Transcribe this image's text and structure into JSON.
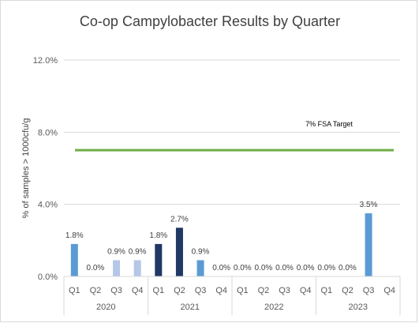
{
  "chart_data": {
    "type": "bar",
    "title": "Co-op Campylobacter Results by Quarter",
    "ylabel": "% of samples > 1000cfu/g",
    "xlabel": "",
    "ylim": [
      0,
      12
    ],
    "yticks": [
      {
        "value": 0,
        "label": "0.0%"
      },
      {
        "value": 4,
        "label": "4.0%"
      },
      {
        "value": 8,
        "label": "8.0%"
      },
      {
        "value": 12,
        "label": "12.0%"
      }
    ],
    "grid": true,
    "legend": "none",
    "years": [
      "2020",
      "2021",
      "2022",
      "2023"
    ],
    "categories": [
      {
        "year": "2020",
        "quarter": "Q1",
        "value": 1.8,
        "label": "1.8%",
        "color": "#5b9bd5"
      },
      {
        "year": "2020",
        "quarter": "Q2",
        "value": 0.0,
        "label": "0.0%",
        "color": "#5b9bd5"
      },
      {
        "year": "2020",
        "quarter": "Q3",
        "value": 0.9,
        "label": "0.9%",
        "color": "#b4c7e7"
      },
      {
        "year": "2020",
        "quarter": "Q4",
        "value": 0.9,
        "label": "0.9%",
        "color": "#b4c7e7"
      },
      {
        "year": "2021",
        "quarter": "Q1",
        "value": 1.8,
        "label": "1.8%",
        "color": "#1f3864"
      },
      {
        "year": "2021",
        "quarter": "Q2",
        "value": 2.7,
        "label": "2.7%",
        "color": "#1f3864"
      },
      {
        "year": "2021",
        "quarter": "Q3",
        "value": 0.9,
        "label": "0.9%",
        "color": "#5b9bd5"
      },
      {
        "year": "2021",
        "quarter": "Q4",
        "value": 0.0,
        "label": "0.0%",
        "color": "#5b9bd5"
      },
      {
        "year": "2022",
        "quarter": "Q1",
        "value": 0.0,
        "label": "0.0%",
        "color": "#5b9bd5"
      },
      {
        "year": "2022",
        "quarter": "Q2",
        "value": 0.0,
        "label": "0.0%",
        "color": "#5b9bd5"
      },
      {
        "year": "2022",
        "quarter": "Q3",
        "value": 0.0,
        "label": "0.0%",
        "color": "#5b9bd5"
      },
      {
        "year": "2022",
        "quarter": "Q4",
        "value": 0.0,
        "label": "0.0%",
        "color": "#5b9bd5"
      },
      {
        "year": "2023",
        "quarter": "Q1",
        "value": 0.0,
        "label": "0.0%",
        "color": "#5b9bd5"
      },
      {
        "year": "2023",
        "quarter": "Q2",
        "value": 0.0,
        "label": "0.0%",
        "color": "#5b9bd5"
      },
      {
        "year": "2023",
        "quarter": "Q3",
        "value": 3.5,
        "label": "3.5%",
        "color": "#5b9bd5"
      },
      {
        "year": "2023",
        "quarter": "Q4",
        "value": null,
        "label": "",
        "color": "#5b9bd5"
      }
    ],
    "target": {
      "value": 7,
      "label": "7% FSA Target",
      "color": "#70ad47"
    }
  }
}
